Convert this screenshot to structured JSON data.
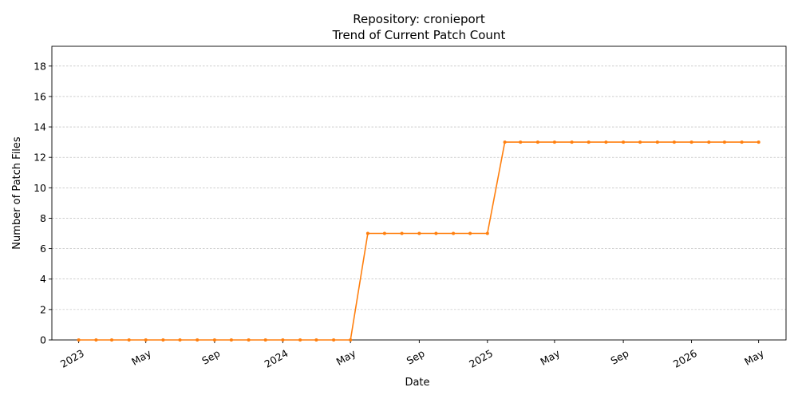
{
  "chart_data": {
    "type": "line",
    "title_line1": "Repository: cronieport",
    "title_line2": "Trend of Current Patch Count",
    "xlabel": "Date",
    "ylabel": "Number of Patch Files",
    "ylim": [
      0,
      19.3
    ],
    "y_ticks": [
      0,
      2,
      4,
      6,
      8,
      10,
      12,
      14,
      16,
      18
    ],
    "x_ticks": [
      {
        "date": "2023-01-01",
        "label": "2023"
      },
      {
        "date": "2023-05-01",
        "label": "May"
      },
      {
        "date": "2023-09-01",
        "label": "Sep"
      },
      {
        "date": "2024-01-01",
        "label": "2024"
      },
      {
        "date": "2024-05-01",
        "label": "May"
      },
      {
        "date": "2024-09-01",
        "label": "Sep"
      },
      {
        "date": "2025-01-01",
        "label": "2025"
      },
      {
        "date": "2025-05-01",
        "label": "May"
      },
      {
        "date": "2025-09-01",
        "label": "Sep"
      },
      {
        "date": "2026-01-01",
        "label": "2026"
      },
      {
        "date": "2026-05-01",
        "label": "May"
      }
    ],
    "grid": "y-dashed",
    "line_color": "#ff7f0e",
    "series": [
      {
        "x": [
          "2023-01-01",
          "2023-02-01",
          "2023-03-01",
          "2023-04-01",
          "2023-05-01",
          "2023-06-01",
          "2023-07-01",
          "2023-08-01",
          "2023-09-01",
          "2023-10-01",
          "2023-11-01",
          "2023-12-01",
          "2024-01-01",
          "2024-02-01",
          "2024-03-01",
          "2024-04-01",
          "2024-05-01",
          "2024-06-01",
          "2024-07-01",
          "2024-08-01",
          "2024-09-01",
          "2024-10-01",
          "2024-11-01",
          "2024-12-01",
          "2025-01-01",
          "2025-02-01",
          "2025-03-01",
          "2025-04-01",
          "2025-05-01",
          "2025-06-01",
          "2025-07-01",
          "2025-08-01",
          "2025-09-01",
          "2025-10-01",
          "2025-11-01",
          "2025-12-01",
          "2026-01-01",
          "2026-02-01",
          "2026-03-01",
          "2026-04-01",
          "2026-05-01"
        ],
        "values": [
          0,
          0,
          0,
          0,
          0,
          0,
          0,
          0,
          0,
          0,
          0,
          0,
          0,
          0,
          0,
          0,
          0,
          7,
          7,
          7,
          7,
          7,
          7,
          7,
          7,
          13,
          13,
          13,
          13,
          13,
          13,
          13,
          13,
          13,
          13,
          13,
          13,
          13,
          13,
          13,
          13
        ]
      }
    ]
  }
}
